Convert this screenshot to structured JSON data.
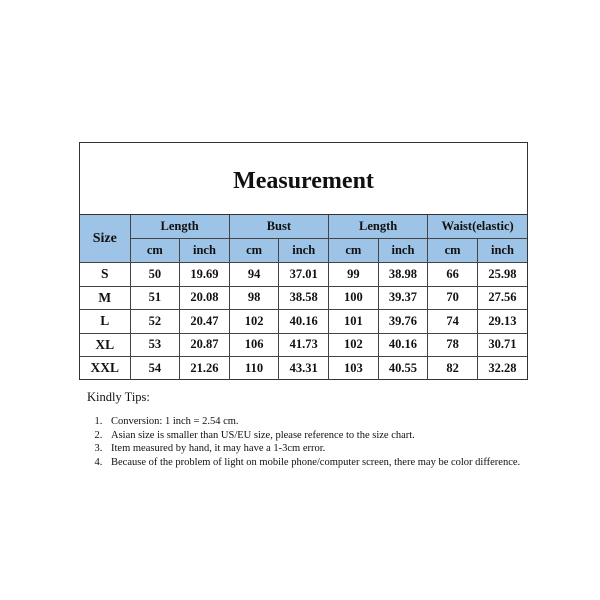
{
  "title": "Measurement",
  "size_header": "Size",
  "groups": [
    "Length",
    "Bust",
    "Length",
    "Waist(elastic)"
  ],
  "units": [
    "cm",
    "inch"
  ],
  "header_color": "#9dc3e6",
  "rows": [
    [
      "S",
      "50",
      "19.69",
      "94",
      "37.01",
      "99",
      "38.98",
      "66",
      "25.98"
    ],
    [
      "M",
      "51",
      "20.08",
      "98",
      "38.58",
      "100",
      "39.37",
      "70",
      "27.56"
    ],
    [
      "L",
      "52",
      "20.47",
      "102",
      "40.16",
      "101",
      "39.76",
      "74",
      "29.13"
    ],
    [
      "XL",
      "53",
      "20.87",
      "106",
      "41.73",
      "102",
      "40.16",
      "78",
      "30.71"
    ],
    [
      "XXL",
      "54",
      "21.26",
      "110",
      "43.31",
      "103",
      "40.55",
      "82",
      "32.28"
    ]
  ],
  "tips": {
    "title": "Kindly Tips:",
    "items": [
      "Conversion: 1 inch = 2.54 cm.",
      "Asian size is smaller than US/EU size, please reference to the size chart.",
      "Item measured by hand, it may have a 1-3cm error.",
      "Because of the problem of light on mobile phone/computer screen, there may be color difference."
    ]
  }
}
